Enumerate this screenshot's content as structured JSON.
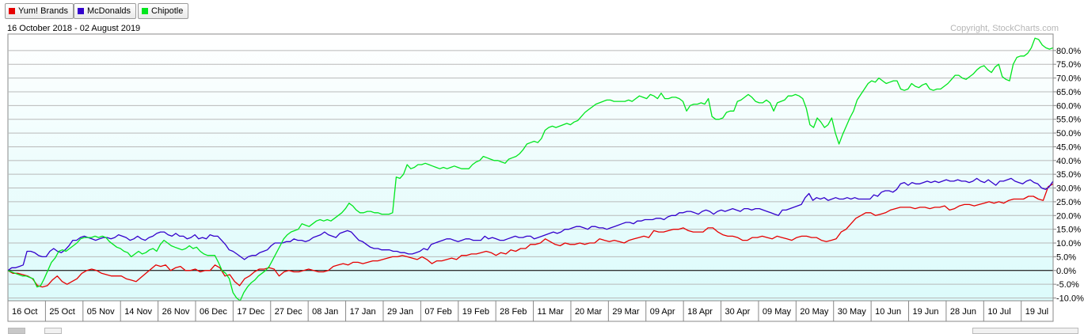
{
  "legend": [
    {
      "label": "Yum! Brands",
      "color": "#e60000"
    },
    {
      "label": "McDonalds",
      "color": "#3300cc"
    },
    {
      "label": "Chipotle",
      "color": "#00e61e"
    }
  ],
  "date_range": "16 October 2018 - 02 August 2019",
  "copyright": "Copyright, StockCharts.com",
  "chart_data": {
    "type": "line",
    "title": "",
    "xlabel": "",
    "ylabel": "",
    "ylim": [
      -11,
      86
    ],
    "zero_line": 0,
    "grid": true,
    "legend_placement": "top-left",
    "y_tick_values": [
      -10,
      -5,
      0,
      5,
      10,
      15,
      20,
      25,
      30,
      35,
      40,
      45,
      50,
      55,
      60,
      65,
      70,
      75,
      80
    ],
    "y_tick_labels": [
      "-10.0%",
      "-5.0%",
      "0.0%",
      "5.0%",
      "10.0%",
      "15.0%",
      "20.0%",
      "25.0%",
      "30.0%",
      "35.0%",
      "40.0%",
      "45.0%",
      "50.0%",
      "55.0%",
      "60.0%",
      "65.0%",
      "70.0%",
      "75.0%",
      "80.0%"
    ],
    "x_tick_labels": [
      "16 Oct",
      "25 Oct",
      "05 Nov",
      "14 Nov",
      "26 Nov",
      "06 Dec",
      "17 Dec",
      "27 Dec",
      "08 Jan",
      "17 Jan",
      "29 Jan",
      "07 Feb",
      "19 Feb",
      "28 Feb",
      "11 Mar",
      "20 Mar",
      "29 Mar",
      "09 Apr",
      "18 Apr",
      "30 Apr",
      "09 May",
      "20 May",
      "30 May",
      "10 Jun",
      "19 Jun",
      "28 Jun",
      "10 Jul",
      "19 Jul"
    ],
    "series": [
      {
        "name": "Yum! Brands",
        "color": "#e60000",
        "values": [
          0,
          -1,
          -1,
          -1.5,
          -2,
          -3,
          -5.5,
          -6,
          -5.5,
          -3.5,
          -2,
          -4,
          -5,
          -4,
          -3,
          -1,
          0,
          0.5,
          0,
          -1,
          -1.5,
          -2,
          -2,
          -2,
          -3,
          -3.5,
          -4,
          -2.5,
          -1,
          0.5,
          2,
          1.5,
          2,
          0,
          1,
          1.5,
          0,
          0,
          0.5,
          -0.5,
          0,
          0,
          2,
          1,
          -2,
          -1.5,
          -4,
          -5.5,
          -3,
          -2,
          -0.5,
          0.5,
          0.5,
          1,
          0.5,
          -2,
          -0.5,
          0,
          -0.5,
          -0.5,
          0,
          0.5,
          0,
          -0.5,
          -0.5,
          0,
          1.5,
          2,
          2.5,
          2,
          3,
          3,
          2.5,
          3,
          3.5,
          3.5,
          4,
          4.5,
          5,
          5,
          5.5,
          5,
          4.5,
          4,
          5,
          4,
          2.5,
          3.5,
          3.5,
          4,
          4.5,
          4,
          5.5,
          5.5,
          6,
          6,
          6.5,
          7,
          6.5,
          5.5,
          6.5,
          6,
          7.5,
          7,
          8,
          8,
          9.5,
          9.5,
          10,
          11.5,
          10.5,
          9.5,
          9,
          10,
          9.5,
          9.5,
          10,
          9.5,
          10,
          10,
          11.5,
          11,
          10.5,
          11,
          10.5,
          10,
          11,
          11.5,
          12,
          12.5,
          12,
          14.5,
          14,
          14,
          14.5,
          15,
          15,
          15.5,
          14.5,
          14,
          14,
          14,
          15.5,
          15.5,
          14,
          13,
          12.5,
          12.5,
          12,
          11,
          11,
          12,
          12,
          12.5,
          12,
          11.5,
          12.5,
          12,
          11.5,
          11,
          12,
          12.5,
          12.5,
          12,
          12,
          11,
          10.5,
          11,
          11.5,
          14,
          15,
          17,
          19,
          20,
          21,
          21,
          20,
          20.5,
          21,
          22,
          22.5,
          23,
          23,
          23,
          22.5,
          23,
          23,
          22.5,
          23,
          23,
          23.5,
          22,
          22.5,
          23.5,
          24,
          24,
          23.5,
          24,
          24.5,
          25,
          24.5,
          25,
          24.5,
          25.5,
          26,
          26,
          26,
          27,
          27,
          26,
          25.5,
          30.5,
          31.5
        ]
      },
      {
        "name": "McDonalds",
        "color": "#3300cc",
        "values": [
          0,
          1,
          1,
          1.5,
          2,
          7,
          7,
          6.5,
          5.5,
          5,
          5,
          7,
          8,
          7,
          6.5,
          7.5,
          9,
          11,
          11,
          12,
          12.5,
          12,
          11.5,
          11,
          11.5,
          12,
          12,
          11.5,
          12,
          13,
          12.5,
          12,
          11,
          11.5,
          12.5,
          11.5,
          11,
          12,
          12.5,
          13.5,
          14,
          14,
          13,
          12.5,
          13.5,
          12.5,
          12.5,
          11.5,
          12,
          13,
          11.5,
          12,
          11.5,
          13,
          12.5,
          12.5,
          11,
          9.5,
          7.5,
          7,
          6,
          5,
          4,
          5,
          5.5,
          5.5,
          6.5,
          7,
          7.5,
          9,
          10,
          10,
          10,
          10.5,
          10.5,
          11.5,
          11,
          11,
          10.5,
          11,
          12,
          12.5,
          13,
          14,
          13,
          12.5,
          12,
          13.5,
          14,
          14.5,
          14,
          12.5,
          11,
          10.5,
          9.5,
          8.5,
          8,
          8,
          7.5,
          7.5,
          7.5,
          7,
          7,
          6.5,
          6.5,
          6,
          6,
          6.5,
          7,
          8,
          7.5,
          9.5,
          10,
          10.5,
          11,
          11.5,
          11.5,
          11,
          10.5,
          11,
          11.5,
          11.5,
          11,
          11,
          11,
          12.5,
          11.5,
          12,
          11.5,
          11,
          11,
          11.5,
          12,
          12.5,
          12,
          12,
          12.5,
          12.5,
          11.5,
          12,
          12.5,
          13,
          13.5,
          14,
          13.5,
          14,
          15,
          15,
          15.5,
          16,
          16,
          15.5,
          15,
          16,
          16,
          15.5,
          15.5,
          15,
          15.5,
          16,
          16.5,
          17,
          17.5,
          17.5,
          17,
          18,
          18,
          18.5,
          18.5,
          18.5,
          19,
          19,
          18.5,
          19.5,
          20,
          20,
          21,
          21,
          21.5,
          21.5,
          21,
          20.5,
          21.5,
          22,
          21.5,
          20.5,
          21.5,
          22,
          21.5,
          22,
          22.5,
          22,
          21.5,
          22.5,
          22.5,
          22,
          22.5,
          22.5,
          22,
          21.5,
          21,
          20.5,
          20,
          22,
          22,
          22.5,
          23,
          23.5,
          24,
          26.5,
          28,
          25.5,
          26.5,
          26,
          26.5,
          25.5,
          26,
          26.5,
          26,
          26,
          26.5,
          26,
          26.5,
          26,
          26,
          26,
          26,
          27.5,
          27,
          28.5,
          29,
          29,
          28.5,
          29.5,
          31.5,
          32,
          31,
          32,
          31.5,
          31.5,
          32,
          32.5,
          32,
          32.5,
          32,
          32.5,
          33,
          32.5,
          32.5,
          33,
          32.5,
          32.5,
          32,
          32.5,
          33.5,
          32.5,
          32,
          33,
          32,
          31,
          32.5,
          32.5,
          33,
          33.5,
          32.5,
          32,
          31.5,
          32.5,
          33,
          32,
          31.5,
          30,
          29.5,
          30.5,
          32.5
        ]
      },
      {
        "name": "Chipotle",
        "color": "#00e61e",
        "values": [
          0,
          -0.5,
          -1,
          -1.5,
          -2,
          -2,
          -2.5,
          -3,
          -6,
          -5.5,
          -3,
          0,
          3,
          4.5,
          7,
          7.5,
          7,
          8,
          9,
          10,
          11.5,
          12,
          12,
          12,
          12.5,
          12,
          12.5,
          12,
          10.5,
          9.5,
          8.5,
          8,
          7,
          6.5,
          5,
          6,
          7,
          6,
          6.5,
          7.5,
          8,
          7,
          9.5,
          11,
          10,
          9,
          8.5,
          8,
          7.5,
          8,
          9,
          8,
          8.5,
          7,
          6,
          5.5,
          5.5,
          5.5,
          3,
          0,
          -1,
          -3,
          -8,
          -10,
          -11,
          -8,
          -6,
          -4.5,
          -3.5,
          -2,
          -1,
          0,
          1.5,
          4,
          6.5,
          9,
          11.5,
          13,
          14,
          14.5,
          15,
          17,
          16.5,
          16,
          17,
          18,
          18.5,
          18,
          18.5,
          18,
          19,
          20,
          21,
          22.5,
          24.5,
          23.5,
          22,
          21,
          21,
          21.5,
          21.5,
          21,
          21,
          20.5,
          20.5,
          20.5,
          21,
          34,
          33.5,
          35,
          38.5,
          37,
          37.5,
          38.5,
          38.5,
          39,
          38.5,
          38,
          37.5,
          37,
          37.5,
          37,
          37.5,
          38,
          37.5,
          37,
          37,
          37,
          38.5,
          39.5,
          40,
          41.5,
          41,
          40.5,
          40,
          40,
          39.5,
          39,
          40.5,
          41,
          41.5,
          42.5,
          44,
          46,
          46.5,
          47,
          46.5,
          48,
          51,
          52,
          52.5,
          52,
          52.5,
          53,
          53.5,
          53,
          54,
          54.5,
          56,
          57.5,
          58.5,
          59.5,
          60.5,
          61,
          61.5,
          62,
          62,
          61.5,
          61.5,
          61.5,
          61.5,
          62,
          61.5,
          62.5,
          63.5,
          63,
          62.5,
          64,
          63.5,
          62.5,
          64.5,
          62.5,
          62.5,
          63,
          63,
          62.5,
          61.5,
          58,
          60,
          60.5,
          60.5,
          61,
          60.5,
          62.5,
          56,
          55,
          55,
          55.5,
          57.5,
          58,
          58,
          61.5,
          62,
          63,
          64,
          63,
          61.5,
          61,
          61,
          62,
          61,
          58,
          61,
          61.5,
          62,
          63.5,
          63.5,
          64,
          63.5,
          62.5,
          59,
          53,
          52,
          55.5,
          54,
          52,
          53,
          55.5,
          50,
          46,
          49.5,
          52.5,
          55.5,
          58,
          62,
          64,
          66,
          68,
          69,
          68.5,
          70,
          69,
          68,
          68.5,
          69,
          69,
          66,
          65.5,
          66,
          68,
          67,
          66.5,
          67.5,
          68,
          66,
          65.5,
          66,
          66,
          67,
          68,
          69.5,
          71,
          71,
          70,
          69.5,
          70.5,
          71.5,
          73,
          74,
          74.5,
          73,
          72,
          74,
          75,
          70.5,
          69.5,
          69,
          75,
          77.5,
          78,
          78,
          79,
          81,
          84.5,
          84,
          82,
          81,
          80.5,
          81
        ]
      }
    ]
  }
}
